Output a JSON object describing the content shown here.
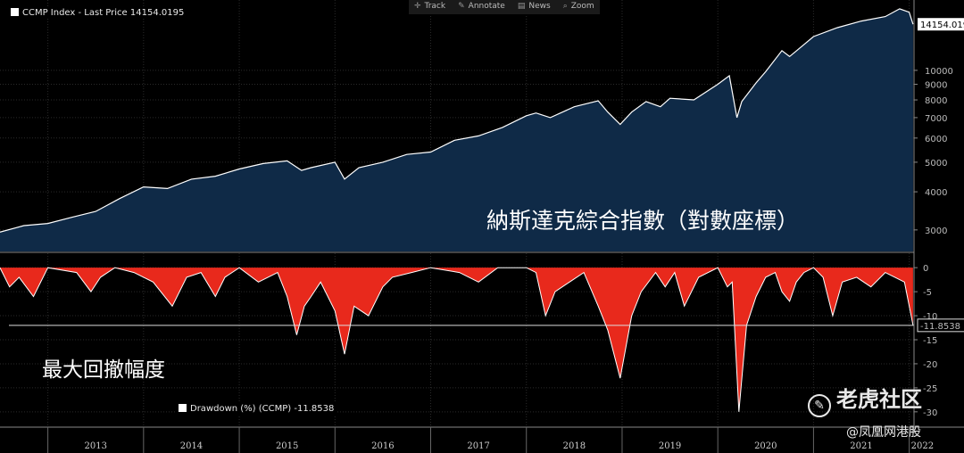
{
  "toolbar": {
    "track": "Track",
    "annotate": "Annotate",
    "news": "News",
    "zoom": "Zoom"
  },
  "legend_top": "CCMP Index - Last Price 14154.0195",
  "legend_bottom": "Drawdown (%) (CCMP) -11.8538",
  "annotation_top": "納斯達克綜合指數（對數座標）",
  "annotation_bottom": "最大回撤幅度",
  "watermark": {
    "brand": "老虎社区",
    "handle": "@凤凰网港股"
  },
  "colors": {
    "price_fill": "#0f2a47",
    "price_line": "#ffffff",
    "drawdown_fill": "#e8291c",
    "bg": "#000000"
  },
  "chart_data": [
    {
      "type": "area",
      "name": "CCMP Index - Last Price",
      "log_scale": true,
      "ylim": [
        2550,
        17000
      ],
      "yticks": [
        3000,
        4000,
        5000,
        6000,
        7000,
        8000,
        9000,
        10000
      ],
      "last_value_label": "14154.019",
      "x_range": [
        2012.5,
        2022.05
      ],
      "series": [
        {
          "name": "CCMP Index",
          "x": [
            2012.5,
            2012.75,
            2013.0,
            2013.25,
            2013.5,
            2013.75,
            2014.0,
            2014.25,
            2014.5,
            2014.75,
            2015.0,
            2015.25,
            2015.5,
            2015.65,
            2015.75,
            2016.0,
            2016.1,
            2016.25,
            2016.5,
            2016.75,
            2017.0,
            2017.25,
            2017.5,
            2017.75,
            2018.0,
            2018.1,
            2018.25,
            2018.5,
            2018.75,
            2018.85,
            2018.98,
            2019.1,
            2019.25,
            2019.4,
            2019.5,
            2019.75,
            2020.0,
            2020.12,
            2020.2,
            2020.25,
            2020.4,
            2020.5,
            2020.67,
            2020.75,
            2021.0,
            2021.25,
            2021.5,
            2021.75,
            2021.9,
            2022.0,
            2022.04
          ],
          "y": [
            2950,
            3100,
            3150,
            3300,
            3450,
            3800,
            4150,
            4100,
            4400,
            4500,
            4750,
            4950,
            5050,
            4700,
            4800,
            5000,
            4400,
            4800,
            5000,
            5300,
            5400,
            5900,
            6100,
            6500,
            7100,
            7250,
            7000,
            7600,
            7950,
            7300,
            6650,
            7300,
            7900,
            7600,
            8100,
            8000,
            9000,
            9600,
            7000,
            7900,
            9100,
            9900,
            11600,
            11100,
            12900,
            13800,
            14500,
            15000,
            15900,
            15500,
            14154
          ]
        }
      ]
    },
    {
      "type": "area",
      "name": "Drawdown (%) (CCMP)",
      "ylim": [
        -33,
        3
      ],
      "yticks": [
        0,
        -5,
        -10,
        -15,
        -20,
        -25,
        -30
      ],
      "last_value_label": "-11.8538",
      "x_range": [
        2012.5,
        2022.05
      ],
      "series": [
        {
          "name": "Drawdown (%)",
          "x": [
            2012.5,
            2012.6,
            2012.7,
            2012.85,
            2013.0,
            2013.3,
            2013.45,
            2013.55,
            2013.7,
            2013.9,
            2014.1,
            2014.3,
            2014.45,
            2014.6,
            2014.75,
            2014.85,
            2015.0,
            2015.2,
            2015.4,
            2015.5,
            2015.6,
            2015.68,
            2015.75,
            2015.85,
            2016.0,
            2016.1,
            2016.2,
            2016.35,
            2016.5,
            2016.6,
            2016.8,
            2017.0,
            2017.3,
            2017.5,
            2017.7,
            2018.0,
            2018.1,
            2018.2,
            2018.3,
            2018.45,
            2018.6,
            2018.75,
            2018.85,
            2018.98,
            2019.1,
            2019.2,
            2019.35,
            2019.45,
            2019.55,
            2019.65,
            2019.8,
            2020.0,
            2020.1,
            2020.15,
            2020.22,
            2020.3,
            2020.4,
            2020.5,
            2020.6,
            2020.67,
            2020.75,
            2020.82,
            2020.9,
            2021.0,
            2021.1,
            2021.2,
            2021.3,
            2021.45,
            2021.6,
            2021.75,
            2021.85,
            2021.95,
            2022.04
          ],
          "y": [
            0,
            -4,
            -2,
            -6,
            0,
            -1,
            -5,
            -2,
            0,
            -1,
            -3,
            -8,
            -2,
            -1,
            -6,
            -2,
            0,
            -3,
            -1,
            -6,
            -14,
            -8,
            -6,
            -3,
            -9,
            -18,
            -8,
            -10,
            -4,
            -2,
            -1,
            0,
            -1,
            -3,
            0,
            0,
            -1,
            -10,
            -5,
            -3,
            -1,
            -8,
            -13,
            -23,
            -10,
            -5,
            -1,
            -4,
            -1,
            -8,
            -2,
            0,
            -4,
            -3,
            -30,
            -12,
            -6,
            -2,
            -1,
            -5,
            -7,
            -3,
            -1,
            0,
            -2,
            -10,
            -3,
            -2,
            -4,
            -1,
            -2,
            -3,
            -12
          ]
        }
      ]
    }
  ],
  "x_axis": {
    "labels": [
      "2013",
      "2014",
      "2015",
      "2016",
      "2017",
      "2018",
      "2019",
      "2020",
      "2021",
      "2022"
    ]
  }
}
